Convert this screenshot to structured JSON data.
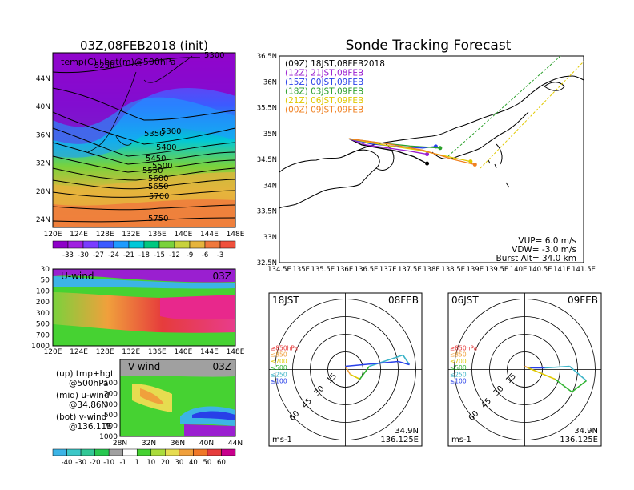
{
  "left": {
    "top_title": "03Z,08FEB2018 (init)",
    "top_subtitle": "temp(C)+hgt(m)@500hPa",
    "x_ticks": [
      "120E",
      "124E",
      "128E",
      "132E",
      "136E",
      "140E",
      "144E",
      "148E"
    ],
    "y_ticks": [
      "24N",
      "28N",
      "32N",
      "36N",
      "40N",
      "44N"
    ],
    "contours": [
      "5250",
      "5300",
      "5300",
      "5350",
      "5400",
      "5450",
      "5500",
      "5550",
      "5600",
      "5650",
      "5700",
      "5750"
    ],
    "colorbar_labels": [
      "-33",
      "-30",
      "-27",
      "-24",
      "-21",
      "-18",
      "-15",
      "-12",
      "-9",
      "-6",
      "-3"
    ],
    "colorbar_colors": [
      "#8e00c8",
      "#a020e0",
      "#7a3cff",
      "#3c5aff",
      "#1e9bff",
      "#00c8d8",
      "#00c880",
      "#7ad23c",
      "#c8d23c",
      "#e6b43c",
      "#f0783c",
      "#f0503c"
    ],
    "uwind_title": "U-wind",
    "uwind_time": "03Z",
    "uwind_y_ticks": [
      "30",
      "50",
      "100",
      "200",
      "300",
      "500",
      "700",
      "1000"
    ],
    "uwind_x_ticks": [
      "120E",
      "124E",
      "128E",
      "132E",
      "136E",
      "140E",
      "144E",
      "148E"
    ],
    "vwind_title": "V-wind",
    "vwind_time": "03Z",
    "vwind_y_ticks": [
      "100",
      "200",
      "300",
      "500",
      "700",
      "1000"
    ],
    "vwind_x_ticks": [
      "28N",
      "32N",
      "36N",
      "40N",
      "44N"
    ],
    "legend_lines": [
      {
        "key": "(up) tmp+hgt",
        "val": "@500hPa"
      },
      {
        "key": "(mid) u-wind",
        "val": "@34.86N"
      },
      {
        "key": "(bot) v-wind",
        "val": "@136.11E"
      }
    ],
    "wind_colorbar_labels": [
      "-40",
      "-30",
      "-20",
      "-10",
      "-1",
      "1",
      "10",
      "20",
      "30",
      "40",
      "50",
      "60"
    ],
    "wind_colorbar_colors": [
      "#3cb4e6",
      "#3cc8c8",
      "#32c896",
      "#28c850",
      "#a0a0a0",
      "#ffffff",
      "#46d232",
      "#aadc3c",
      "#e6dc50",
      "#f0a03c",
      "#f07828",
      "#e63c3c",
      "#c8008c"
    ]
  },
  "right": {
    "title": "Sonde Tracking Forecast",
    "x_ticks": [
      "134.5E",
      "135E",
      "135.5E",
      "136E",
      "136.5E",
      "137E",
      "137.5E",
      "138E",
      "138.5E",
      "139E",
      "139.5E",
      "140E",
      "140.5E",
      "141E",
      "141.5E"
    ],
    "y_ticks": [
      "32.5N",
      "33N",
      "33.5N",
      "34N",
      "34.5N",
      "35N",
      "35.5N",
      "36N",
      "36.5N"
    ],
    "runs": [
      {
        "label": "(09Z)  18JST,08FEB2018",
        "color": "#000000"
      },
      {
        "label": "(12Z)  21JST,08FEB",
        "color": "#9a1fd0"
      },
      {
        "label": "(15Z)  00JST,09FEB",
        "color": "#2840e8"
      },
      {
        "label": "(18Z)  03JST,09FEB",
        "color": "#2ca02c"
      },
      {
        "label": "(21Z)  06JST,09FEB",
        "color": "#e0c800"
      },
      {
        "label": "(00Z)  09JST,09FEB",
        "color": "#f08020"
      }
    ],
    "vup": "VUP=  6.0 m/s",
    "vdw": "VDW= -3.0 m/s",
    "burst": "Burst Alt=  34.0 km"
  },
  "hodos": [
    {
      "time": "18JST",
      "date": "08FEB",
      "lat": "34.9N",
      "lon": "136.125E",
      "unit": "ms-1",
      "rings": [
        "15",
        "30",
        "45",
        "60"
      ]
    },
    {
      "time": "06JST",
      "date": "09FEB",
      "lat": "34.9N",
      "lon": "136.125E",
      "unit": "ms-1",
      "rings": [
        "15",
        "30",
        "45",
        "60"
      ]
    }
  ],
  "hodo_legend": [
    {
      "label": "≥850hPa",
      "color": "#e63c3c"
    },
    {
      "label": "≤850",
      "color": "#f0a03c"
    },
    {
      "label": "≤700",
      "color": "#e0c800"
    },
    {
      "label": "≤500",
      "color": "#32b432"
    },
    {
      "label": "≤250",
      "color": "#3cb4c8"
    },
    {
      "label": "≤100",
      "color": "#2840e8"
    }
  ],
  "chart_data": {
    "type": "line",
    "title": "Sonde Tracking Forecast",
    "xlim": [
      134.5,
      141.5
    ],
    "ylim": [
      32.5,
      36.5
    ],
    "series": [
      {
        "name": "(09Z)  18JST,08FEB2018",
        "x": [
          136.1,
          136.4,
          136.8,
          137.2,
          137.6,
          137.9
        ],
        "y": [
          34.9,
          34.78,
          34.72,
          34.66,
          34.55,
          34.42
        ]
      },
      {
        "name": "(12Z)  21JST,08FEB",
        "x": [
          136.1,
          136.5,
          137.0,
          137.5,
          137.9
        ],
        "y": [
          34.9,
          34.78,
          34.72,
          34.66,
          34.6
        ]
      },
      {
        "name": "(15Z)  00JST,09FEB",
        "x": [
          136.1,
          136.6,
          137.2,
          137.8,
          138.1
        ],
        "y": [
          34.9,
          34.8,
          34.75,
          34.72,
          34.75
        ]
      },
      {
        "name": "(18Z)  03JST,09FEB",
        "x": [
          136.1,
          136.8,
          137.5,
          138.2
        ],
        "y": [
          34.9,
          34.82,
          34.76,
          34.72
        ]
      },
      {
        "name": "(21Z)  06JST,09FEB",
        "x": [
          136.1,
          136.9,
          137.7,
          138.4,
          138.9
        ],
        "y": [
          34.9,
          34.78,
          34.68,
          34.55,
          34.46
        ]
      },
      {
        "name": "(00Z)  09JST,09FEB",
        "x": [
          136.1,
          137.0,
          137.8,
          138.5,
          139.0
        ],
        "y": [
          34.9,
          34.8,
          34.68,
          34.5,
          34.4
        ]
      }
    ]
  }
}
